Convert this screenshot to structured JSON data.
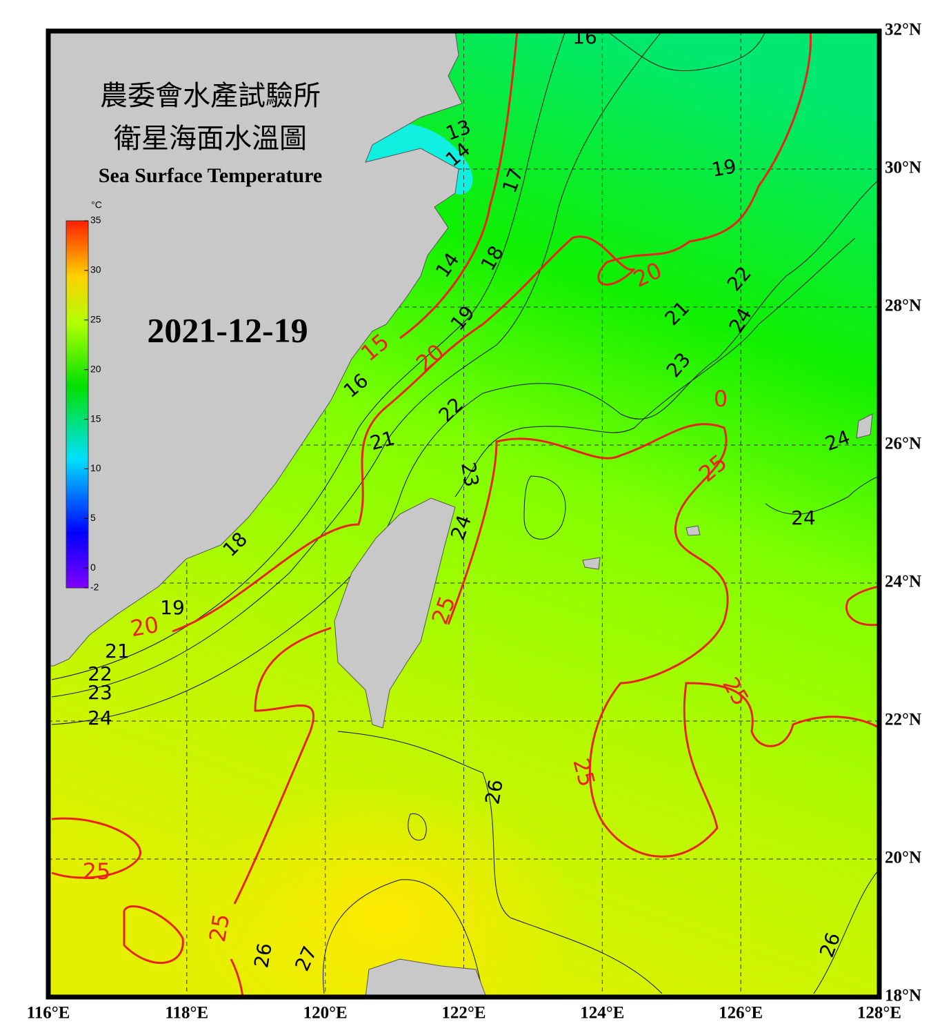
{
  "map": {
    "title_zh": "農委會水產試驗所",
    "subtitle_zh": "衛星海面水溫圖",
    "title_en": "Sea Surface Temperature",
    "date": "2021-12-19",
    "colorbar": {
      "unit": "°C",
      "range": [
        -2,
        35
      ],
      "ticks": [
        -2,
        0,
        5,
        10,
        15,
        20,
        25,
        30,
        35
      ]
    },
    "lon_range": [
      116,
      128
    ],
    "lat_range": [
      18,
      32
    ],
    "lon_ticks": [
      {
        "value": 116,
        "label": "116°E"
      },
      {
        "value": 118,
        "label": "118°E"
      },
      {
        "value": 120,
        "label": "120°E"
      },
      {
        "value": 122,
        "label": "122°E"
      },
      {
        "value": 124,
        "label": "124°E"
      },
      {
        "value": 126,
        "label": "126°E"
      },
      {
        "value": 128,
        "label": "128°E"
      }
    ],
    "lat_ticks": [
      {
        "value": 18,
        "label": "18°N"
      },
      {
        "value": 20,
        "label": "20°N"
      },
      {
        "value": 22,
        "label": "22°N"
      },
      {
        "value": 24,
        "label": "24°N"
      },
      {
        "value": 26,
        "label": "26°N"
      },
      {
        "value": 28,
        "label": "28°N"
      },
      {
        "value": 30,
        "label": "30°N"
      },
      {
        "value": 32,
        "label": "32°N"
      }
    ],
    "contour_labels": [
      16,
      13,
      14,
      17,
      19,
      18,
      14,
      20,
      22,
      21,
      19,
      24,
      15,
      20,
      23,
      0,
      16,
      22,
      21,
      24,
      25,
      23,
      24,
      24,
      18,
      19,
      25,
      20,
      21,
      22,
      23,
      24,
      25,
      26,
      25,
      25,
      25,
      26,
      27,
      26
    ]
  }
}
